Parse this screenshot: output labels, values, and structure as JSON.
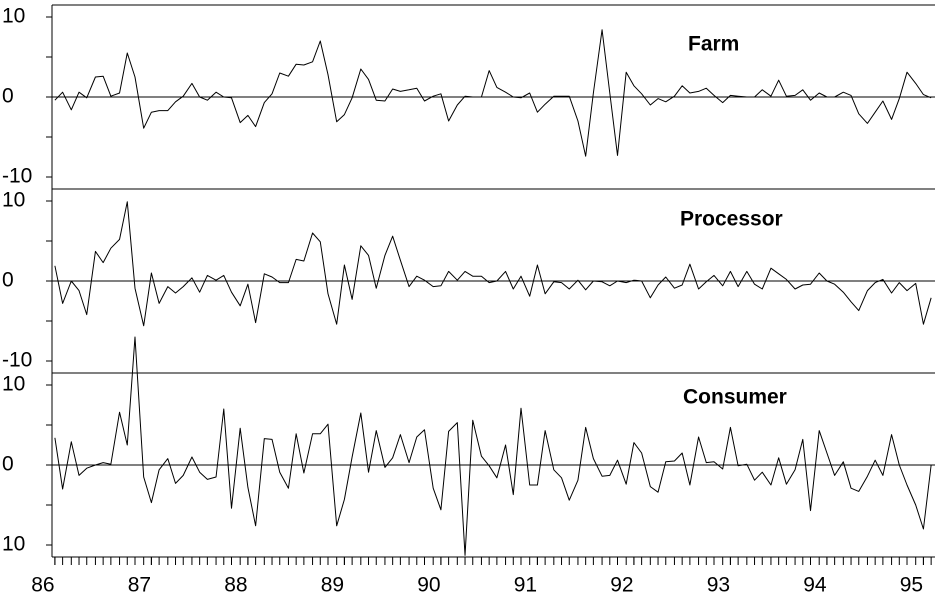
{
  "chart_data": {
    "type": "line",
    "x": [
      86,
      86.08,
      86.17,
      86.25,
      86.33,
      86.42,
      86.5,
      86.58,
      86.67,
      86.75,
      86.83,
      86.92,
      87,
      87.08,
      87.17,
      87.25,
      87.33,
      87.42,
      87.5,
      87.58,
      87.67,
      87.75,
      87.83,
      87.92,
      88,
      88.08,
      88.17,
      88.25,
      88.33,
      88.42,
      88.5,
      88.58,
      88.67,
      88.75,
      88.83,
      88.92,
      89,
      89.08,
      89.17,
      89.25,
      89.33,
      89.42,
      89.5,
      89.58,
      89.67,
      89.75,
      89.83,
      89.92,
      90,
      90.08,
      90.17,
      90.25,
      90.33,
      90.42,
      90.5,
      90.58,
      90.67,
      90.75,
      90.83,
      90.92,
      91,
      91.08,
      91.17,
      91.25,
      91.33,
      91.42,
      91.5,
      91.58,
      91.67,
      91.75,
      91.83,
      91.92,
      92,
      92.08,
      92.17,
      92.25,
      92.33,
      92.42,
      92.5,
      92.58,
      92.67,
      92.75,
      92.83,
      92.92,
      93,
      93.08,
      93.17,
      93.25,
      93.33,
      93.42,
      93.5,
      93.58,
      93.67,
      93.75,
      93.83,
      93.92,
      94,
      94.08,
      94.17,
      94.25,
      94.33,
      94.42,
      94.5,
      94.58,
      94.67,
      94.75,
      94.83,
      94.92,
      95,
      95.08
    ],
    "xlim": [
      85.97,
      95.12
    ],
    "xticks": [
      86,
      87,
      88,
      89,
      90,
      91,
      92,
      93,
      94,
      95
    ],
    "minor_yticks": [
      -5,
      5
    ],
    "series": [
      {
        "name": "Farm",
        "color": "#000000",
        "ylim": [
          -11.5,
          11.5
        ],
        "yticks": [
          -10,
          0,
          10
        ],
        "values": [
          -0.4,
          0.6,
          -1.6,
          0.6,
          -0.1,
          2.5,
          2.6,
          0.1,
          0.5,
          5.5,
          2.5,
          -3.9,
          -1.9,
          -1.7,
          -1.7,
          -0.6,
          0.1,
          1.7,
          0,
          -0.4,
          0.6,
          0,
          -0.1,
          -3.2,
          -2.3,
          -3.7,
          -0.7,
          0.4,
          3,
          2.6,
          4.1,
          4,
          4.4,
          7,
          2.8,
          -3.1,
          -2.2,
          -0.1,
          3.5,
          2.2,
          -0.4,
          -0.5,
          1,
          0.7,
          0.9,
          1.1,
          -0.5,
          0.1,
          0.4,
          -3,
          -1,
          0.1,
          0,
          0,
          3.3,
          1.2,
          0.6,
          0,
          -0.1,
          0.5,
          -1.9,
          -0.9,
          0.1,
          0.1,
          0.1,
          -3,
          -7.4,
          0.5,
          8.4,
          0.5,
          -7.3,
          3.1,
          1.4,
          0.4,
          -1,
          -0.2,
          -0.6,
          0.1,
          1.4,
          0.5,
          0.7,
          1.1,
          0.2,
          -0.7,
          0.2,
          0.1,
          0,
          0,
          0.9,
          0.1,
          2.1,
          0.1,
          0.2,
          0.9,
          -0.4,
          0.5,
          0,
          0,
          0.6,
          0.2,
          -2.1,
          -3.3,
          -1.9,
          -0.5,
          -2.8,
          -0.2,
          3.1,
          1.7,
          0.3,
          -0.1
        ]
      },
      {
        "name": "Processor",
        "color": "#000000",
        "ylim": [
          -11.5,
          11.5
        ],
        "yticks": [
          -10,
          0,
          10
        ],
        "values": [
          1.9,
          -2.8,
          0,
          -1.2,
          -4.2,
          3.7,
          2.3,
          4.1,
          5.2,
          9.9,
          -0.9,
          -5.6,
          1,
          -2.8,
          -0.7,
          -1.5,
          -0.7,
          0.4,
          -1.4,
          0.7,
          0.1,
          0.7,
          -1.4,
          -3.1,
          -0.4,
          -5.2,
          0.9,
          0.5,
          -0.2,
          -0.2,
          2.7,
          2.5,
          6,
          4.9,
          -1.6,
          -5.4,
          2,
          -2.3,
          4.4,
          3.2,
          -0.9,
          3.2,
          5.6,
          2.6,
          -0.7,
          0.6,
          0.1,
          -0.7,
          -0.6,
          1.2,
          0.1,
          1.2,
          0.6,
          0.6,
          -0.2,
          0,
          1.2,
          -1,
          0.6,
          -1.9,
          2,
          -1.6,
          -0.1,
          -0.2,
          -1,
          0.1,
          -1.1,
          0,
          -0.1,
          -0.6,
          0,
          -0.2,
          0.1,
          0,
          -2.1,
          -0.5,
          0.5,
          -0.9,
          -0.5,
          2.1,
          -1,
          -0.1,
          0.7,
          -0.6,
          1.2,
          -0.7,
          1.2,
          -0.4,
          -1,
          1.6,
          0.9,
          0.2,
          -1,
          -0.5,
          -0.4,
          1,
          0,
          -0.4,
          -1.4,
          -2.6,
          -3.7,
          -1.2,
          -0.2,
          0.2,
          -1.5,
          -0.2,
          -1.2,
          -0.3,
          -5.4,
          -2.1
        ]
      },
      {
        "name": "Consumer",
        "color": "#000000",
        "ylim": [
          -11.5,
          11.5
        ],
        "yticks": [
          {
            "value": -10,
            "label": "10"
          },
          0,
          10
        ],
        "values": [
          3.4,
          -3,
          2.9,
          -1.3,
          -0.4,
          0,
          0.3,
          0.1,
          6.6,
          2.5,
          16,
          -1.5,
          -4.7,
          -0.6,
          0.8,
          -2.3,
          -1.3,
          1,
          -0.9,
          -1.8,
          -1.5,
          7,
          -5.4,
          4.6,
          -2.8,
          -7.6,
          3.3,
          3.2,
          -0.9,
          -2.9,
          3.9,
          -1,
          3.9,
          3.9,
          5.1,
          -7.6,
          -4.3,
          1,
          6.5,
          -0.9,
          4.3,
          -0.3,
          0.9,
          3.8,
          0.3,
          3.5,
          4.4,
          -2.9,
          -5.6,
          4.2,
          5.3,
          -11.3,
          5.6,
          1.1,
          -0.1,
          -1.6,
          2.5,
          -3.7,
          7.1,
          -2.5,
          -2.5,
          4.3,
          -0.6,
          -1.6,
          -4.4,
          -1.9,
          4.7,
          0.8,
          -1.4,
          -1.3,
          0.6,
          -2.4,
          2.8,
          1.5,
          -2.7,
          -3.4,
          0.4,
          0.5,
          1.5,
          -2.5,
          3.5,
          0.3,
          0.4,
          -0.5,
          4.7,
          -0.1,
          0.1,
          -1.9,
          -0.9,
          -2.5,
          0.9,
          -2.4,
          -0.6,
          3.2,
          -5.7,
          4.3,
          1.5,
          -1.3,
          0.4,
          -2.9,
          -3.3,
          -1.4,
          0.6,
          -1.3,
          3.8,
          0,
          -2.5,
          -5,
          -8,
          0
        ]
      }
    ]
  }
}
